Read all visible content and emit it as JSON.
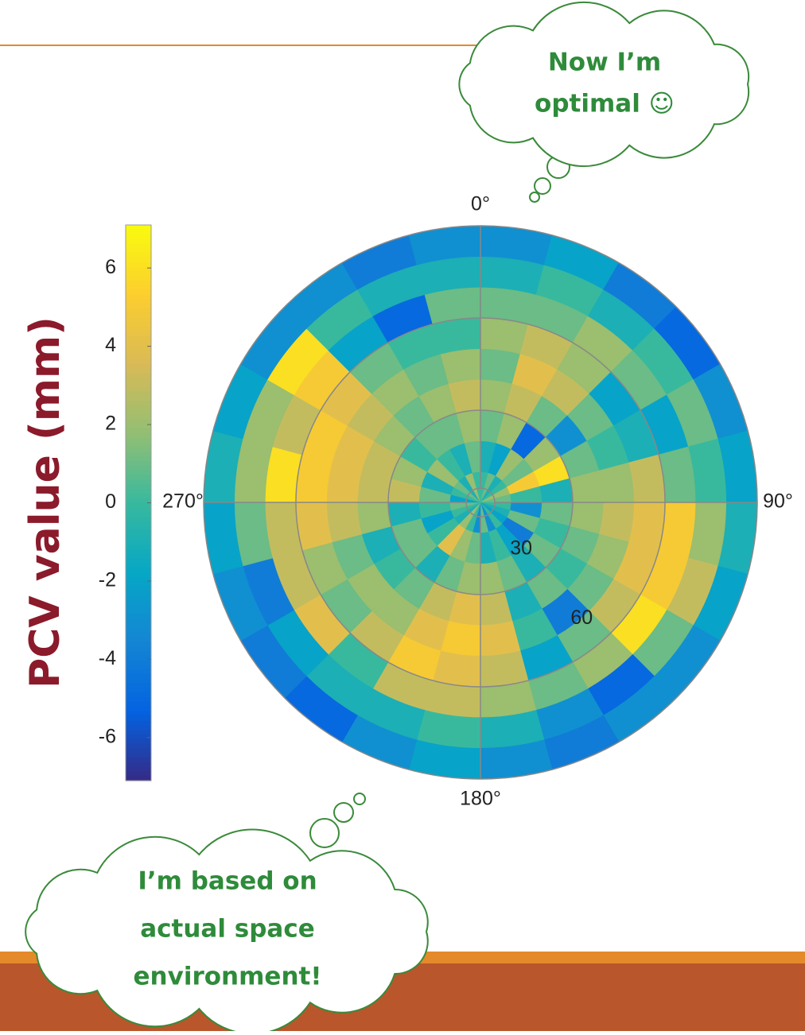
{
  "chart_data": {
    "type": "polar-heatmap",
    "colorbar_label": "PCV value (mm)",
    "clim": [
      -7.1,
      7.1
    ],
    "cticks": [
      -6,
      -4,
      -2,
      0,
      2,
      4,
      6
    ],
    "theta_edges": [
      0,
      15,
      30,
      45,
      60,
      75,
      90,
      105,
      120,
      135,
      150,
      165,
      180,
      195,
      210,
      225,
      240,
      255,
      270,
      285,
      300,
      315,
      330,
      345,
      360
    ],
    "r_edges": [
      0,
      10,
      20,
      30,
      40,
      50,
      60,
      70,
      80,
      90
    ],
    "rlim": [
      0,
      90
    ],
    "thetaticks": [
      {
        "value": 0,
        "label": "0°"
      },
      {
        "value": 90,
        "label": "90°"
      },
      {
        "value": 180,
        "label": "180°"
      },
      {
        "value": 270,
        "label": "270°"
      }
    ],
    "rticks": [
      30,
      60
    ],
    "values": [
      [
        0,
        -1,
        1,
        2,
        1,
        2,
        1,
        -1,
        -3
      ],
      [
        1,
        -2,
        2,
        3,
        4,
        3,
        1,
        0,
        -2
      ],
      [
        -1,
        2,
        -5,
        1,
        3,
        2,
        2,
        -1,
        -4
      ],
      [
        0,
        1,
        2,
        -3,
        1,
        -2,
        1,
        0,
        -5
      ],
      [
        2,
        5,
        6,
        1,
        0,
        -1,
        -2,
        1,
        -3
      ],
      [
        1,
        0,
        -1,
        2,
        2,
        3,
        1,
        0,
        -2
      ],
      [
        0,
        -3,
        1,
        2,
        3,
        4,
        5,
        2,
        -1
      ],
      [
        -1,
        1,
        0,
        1,
        2,
        4,
        5,
        3,
        -2
      ],
      [
        -2,
        -4,
        1,
        0,
        1,
        3,
        6,
        1,
        -3
      ],
      [
        0,
        -2,
        -1,
        1,
        -4,
        1,
        2,
        -5,
        -3
      ],
      [
        -3,
        0,
        1,
        -1,
        0,
        -2,
        1,
        -3,
        -4
      ],
      [
        1,
        -1,
        2,
        3,
        4,
        3,
        2,
        -1,
        -3
      ],
      [
        -3,
        1,
        2,
        4,
        5,
        4,
        3,
        0,
        -2
      ],
      [
        0,
        2,
        1,
        3,
        4,
        5,
        3,
        -1,
        -3
      ],
      [
        2,
        4,
        -1,
        1,
        2,
        3,
        0,
        -1,
        -5
      ],
      [
        -1,
        0,
        1,
        0,
        2,
        1,
        4,
        -2,
        -4
      ],
      [
        0,
        -2,
        1,
        -1,
        1,
        2,
        3,
        -4,
        -3
      ],
      [
        1,
        0,
        -1,
        2,
        3,
        4,
        3,
        1,
        -2
      ],
      [
        -2,
        1,
        3,
        3,
        4,
        5,
        6,
        2,
        -1
      ],
      [
        0,
        -1,
        2,
        3,
        4,
        5,
        3,
        2,
        -2
      ],
      [
        1,
        2,
        0,
        2,
        3,
        4,
        5,
        6,
        -3
      ],
      [
        -1,
        0,
        1,
        1,
        2,
        1,
        -2,
        0,
        -3
      ],
      [
        2,
        -1,
        1,
        2,
        1,
        0,
        -5,
        -1,
        -4
      ],
      [
        0,
        1,
        2,
        3,
        2,
        0,
        1,
        -1,
        -3
      ]
    ]
  },
  "callouts": [
    {
      "lines": [
        "Now I’m",
        "optimal ☺"
      ]
    },
    {
      "lines": [
        "I’m based on",
        "actual space",
        "environment!"
      ]
    }
  ]
}
